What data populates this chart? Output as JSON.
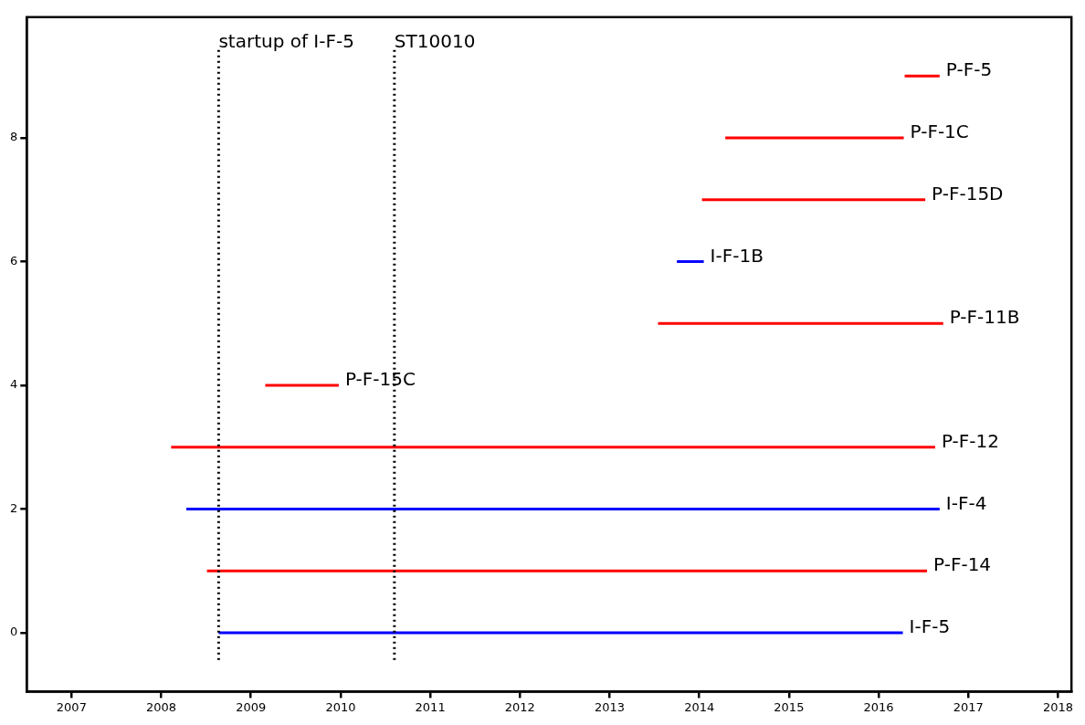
{
  "chart_data": {
    "type": "line",
    "marker": "none",
    "legend": false,
    "grid": false,
    "xlim": [
      2006.5,
      2018.15
    ],
    "xticks": [
      2007,
      2008,
      2009,
      2010,
      2011,
      2012,
      2013,
      2014,
      2015,
      2016,
      2017,
      2018
    ],
    "ylim": [
      -0.95,
      9.95
    ],
    "yticks": [
      0,
      2,
      4,
      6,
      8
    ],
    "series": [
      {
        "name": "I-F-5",
        "color": "#0000ff",
        "x": [
          2008.64,
          2016.27
        ],
        "values": [
          0,
          0
        ]
      },
      {
        "name": "P-F-14",
        "color": "#ff0000",
        "x": [
          2008.51,
          2016.54
        ],
        "values": [
          1,
          1
        ]
      },
      {
        "name": "I-F-4",
        "color": "#0000ff",
        "x": [
          2008.28,
          2016.68
        ],
        "values": [
          2,
          2
        ]
      },
      {
        "name": "P-F-12",
        "color": "#ff0000",
        "x": [
          2008.11,
          2016.63
        ],
        "values": [
          3,
          3
        ]
      },
      {
        "name": "P-F-15C",
        "color": "#ff0000",
        "x": [
          2009.16,
          2009.98
        ],
        "values": [
          4,
          4
        ]
      },
      {
        "name": "P-F-11B",
        "color": "#ff0000",
        "x": [
          2013.54,
          2016.72
        ],
        "values": [
          5,
          5
        ]
      },
      {
        "name": "I-F-1B",
        "color": "#0000ff",
        "x": [
          2013.75,
          2014.05
        ],
        "values": [
          6,
          6
        ]
      },
      {
        "name": "P-F-15D",
        "color": "#ff0000",
        "x": [
          2014.03,
          2016.52
        ],
        "values": [
          7,
          7
        ]
      },
      {
        "name": "P-F-1C",
        "color": "#ff0000",
        "x": [
          2014.29,
          2016.28
        ],
        "values": [
          8,
          8
        ]
      },
      {
        "name": "P-F-5",
        "color": "#ff0000",
        "x": [
          2016.29,
          2016.68
        ],
        "values": [
          9,
          9
        ]
      }
    ],
    "ref_lines": [
      {
        "axis": "x",
        "value": 2008.64,
        "label": "startup of I-F-5",
        "color": "#000000",
        "line_style": "dotted"
      },
      {
        "axis": "x",
        "value": 2010.6,
        "label": "ST10010",
        "color": "#000000",
        "line_style": "dotted"
      }
    ]
  }
}
